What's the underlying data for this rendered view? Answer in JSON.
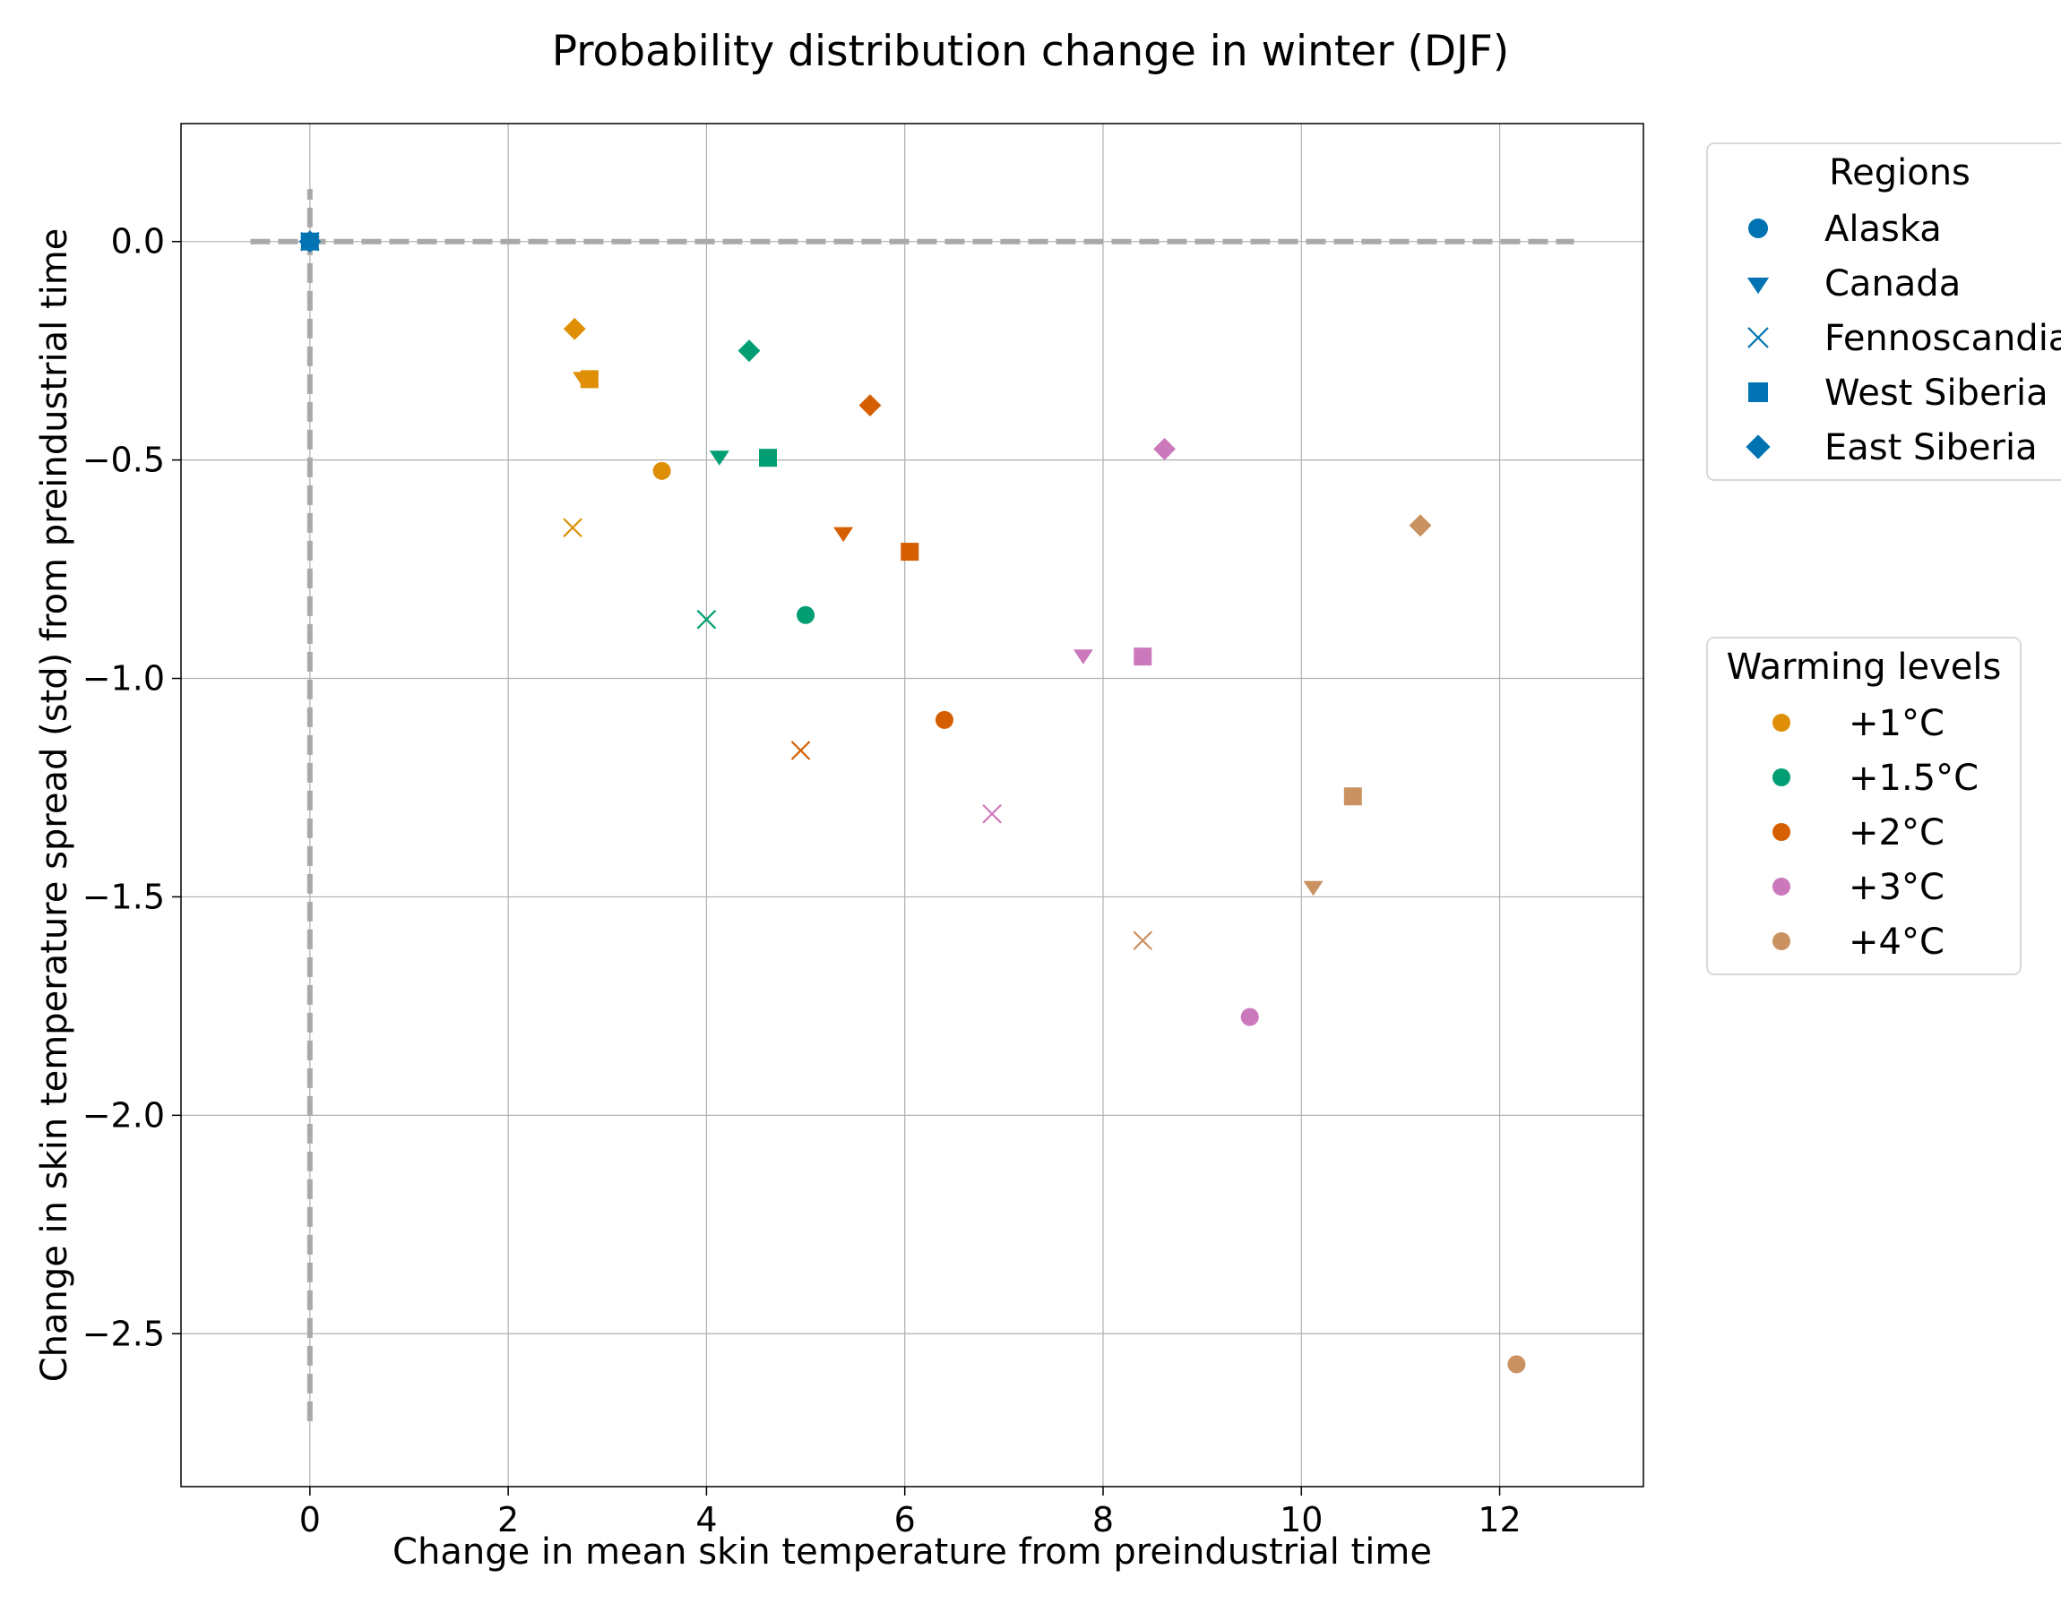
{
  "chart_data": {
    "type": "scatter",
    "title": "Probability distribution change in winter (DJF)",
    "xlabel": "Change in mean skin temperature from preindustrial time",
    "ylabel": "Change in skin temperature spread (std) from preindustrial time",
    "xlim": [
      -1.3,
      13.45
    ],
    "ylim": [
      -2.85,
      0.27
    ],
    "xticks": [
      0,
      2,
      4,
      6,
      8,
      10,
      12
    ],
    "xtick_labels": [
      "0",
      "2",
      "4",
      "6",
      "8",
      "10",
      "12"
    ],
    "yticks": [
      0.0,
      -0.5,
      -1.0,
      -1.5,
      -2.0,
      -2.5
    ],
    "ytick_labels": [
      "0.0",
      "−0.5",
      "−1.0",
      "−1.5",
      "−2.0",
      "−2.5"
    ],
    "grid": true,
    "reference_lines": [
      {
        "orientation": "horizontal",
        "value": 0,
        "from": -0.6,
        "to": 12.75,
        "style": "dashed",
        "color": "#a9a9a9"
      },
      {
        "orientation": "vertical",
        "value": 0,
        "from": -2.7,
        "to": 0.12,
        "style": "dashed",
        "color": "#a9a9a9"
      }
    ],
    "origin_markers": [
      {
        "region": "Alaska",
        "x": 0,
        "y": 0
      },
      {
        "region": "Canada",
        "x": 0,
        "y": 0
      },
      {
        "region": "Fennoscandia",
        "x": 0,
        "y": 0
      },
      {
        "region": "West Siberia",
        "x": 0,
        "y": 0
      },
      {
        "region": "East Siberia",
        "x": 0,
        "y": 0
      }
    ],
    "origin_color": "#0173b2",
    "regions": [
      {
        "name": "Alaska",
        "marker": "circle"
      },
      {
        "name": "Canada",
        "marker": "triangle-down"
      },
      {
        "name": "Fennoscandia",
        "marker": "x"
      },
      {
        "name": "West Siberia",
        "marker": "square"
      },
      {
        "name": "East Siberia",
        "marker": "diamond"
      }
    ],
    "series": [
      {
        "name": "+1°C",
        "color": "#de8f05",
        "points": [
          {
            "region": "Alaska",
            "x": 3.55,
            "y": -0.525
          },
          {
            "region": "Canada",
            "x": 2.75,
            "y": -0.31
          },
          {
            "region": "Fennoscandia",
            "x": 2.65,
            "y": -0.655
          },
          {
            "region": "West Siberia",
            "x": 2.82,
            "y": -0.315
          },
          {
            "region": "East Siberia",
            "x": 2.67,
            "y": -0.2
          }
        ]
      },
      {
        "name": "+1.5°C",
        "color": "#029e73",
        "points": [
          {
            "region": "Alaska",
            "x": 5.0,
            "y": -0.855
          },
          {
            "region": "Canada",
            "x": 4.13,
            "y": -0.49
          },
          {
            "region": "Fennoscandia",
            "x": 4.0,
            "y": -0.865
          },
          {
            "region": "West Siberia",
            "x": 4.62,
            "y": -0.495
          },
          {
            "region": "East Siberia",
            "x": 4.43,
            "y": -0.25
          }
        ]
      },
      {
        "name": "+2°C",
        "color": "#d55e00",
        "points": [
          {
            "region": "Alaska",
            "x": 6.4,
            "y": -1.095
          },
          {
            "region": "Canada",
            "x": 5.38,
            "y": -0.665
          },
          {
            "region": "Fennoscandia",
            "x": 4.95,
            "y": -1.165
          },
          {
            "region": "West Siberia",
            "x": 6.05,
            "y": -0.71
          },
          {
            "region": "East Siberia",
            "x": 5.65,
            "y": -0.375
          }
        ]
      },
      {
        "name": "+3°C",
        "color": "#cc78bc",
        "points": [
          {
            "region": "Alaska",
            "x": 9.48,
            "y": -1.775
          },
          {
            "region": "Canada",
            "x": 7.8,
            "y": -0.945
          },
          {
            "region": "Fennoscandia",
            "x": 6.88,
            "y": -1.31
          },
          {
            "region": "West Siberia",
            "x": 8.4,
            "y": -0.95
          },
          {
            "region": "East Siberia",
            "x": 8.62,
            "y": -0.475
          }
        ]
      },
      {
        "name": "+4°C",
        "color": "#ca9161",
        "points": [
          {
            "region": "Alaska",
            "x": 12.17,
            "y": -2.57
          },
          {
            "region": "Canada",
            "x": 10.12,
            "y": -1.475
          },
          {
            "region": "Fennoscandia",
            "x": 8.4,
            "y": -1.6
          },
          {
            "region": "West Siberia",
            "x": 10.52,
            "y": -1.27
          },
          {
            "region": "East Siberia",
            "x": 11.2,
            "y": -0.65
          }
        ]
      }
    ],
    "legends": [
      {
        "title": "Regions",
        "placement": "right-top",
        "marker_color": "#0173b2",
        "entries": [
          "Alaska",
          "Canada",
          "Fennoscandia",
          "West Siberia",
          "East Siberia"
        ]
      },
      {
        "title": "Warming levels",
        "placement": "right-middle",
        "marker": "circle",
        "entries": [
          "+1°C",
          "+1.5°C",
          "+2°C",
          "+3°C",
          "+4°C"
        ]
      }
    ]
  }
}
